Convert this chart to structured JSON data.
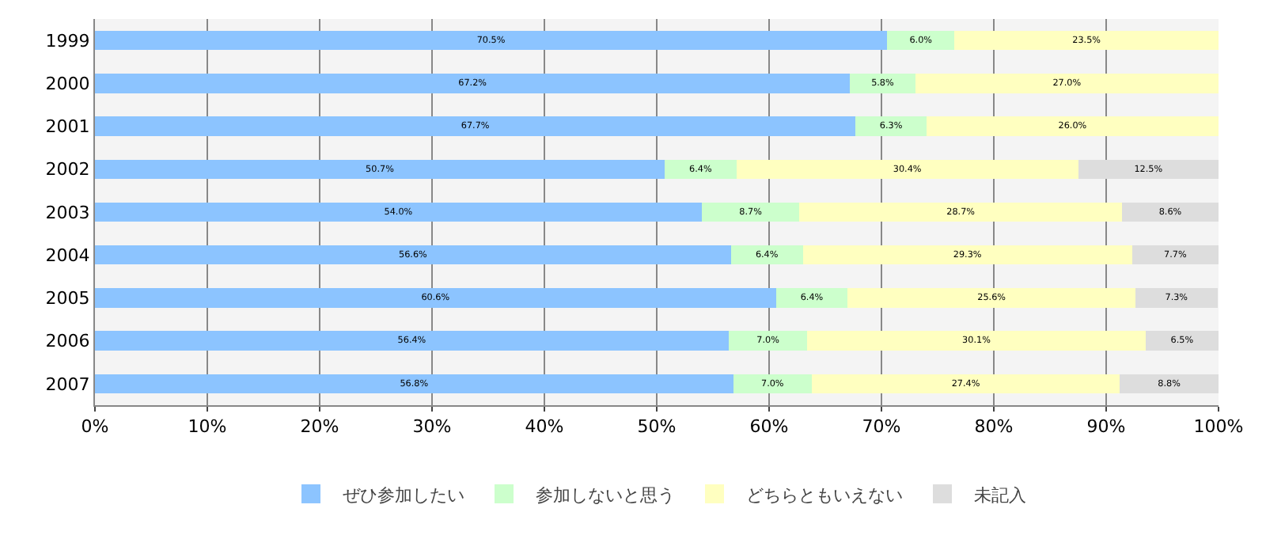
{
  "chart_data": {
    "type": "bar",
    "orientation": "horizontal",
    "stacked": true,
    "categories": [
      "1999",
      "2000",
      "2001",
      "2002",
      "2003",
      "2004",
      "2005",
      "2006",
      "2007"
    ],
    "series": [
      {
        "name": "ぜひ参加したい",
        "color": "#8cc4ff",
        "values": [
          70.5,
          67.2,
          67.7,
          50.7,
          54.0,
          56.6,
          60.6,
          56.4,
          56.8
        ],
        "value_labels": [
          "70.5%",
          "67.2%",
          "67.7%",
          "50.7%",
          "54.0%",
          "56.6%",
          "60.6%",
          "56.4%",
          "56.8%"
        ]
      },
      {
        "name": "参加しないと思う",
        "color": "#ccffcc",
        "values": [
          6.0,
          5.8,
          6.3,
          6.4,
          8.7,
          6.4,
          6.4,
          7.0,
          7.0
        ],
        "value_labels": [
          "6.0%",
          "5.8%",
          "6.3%",
          "6.4%",
          "8.7%",
          "6.4%",
          "6.4%",
          "7.0%",
          "7.0%"
        ]
      },
      {
        "name": "どちらともいえない",
        "color": "#ffffc0",
        "values": [
          23.5,
          27.0,
          26.0,
          30.4,
          28.7,
          29.3,
          25.6,
          30.1,
          27.4
        ],
        "value_labels": [
          "23.5%",
          "27.0%",
          "26.0%",
          "30.4%",
          "28.7%",
          "29.3%",
          "25.6%",
          "30.1%",
          "27.4%"
        ]
      },
      {
        "name": "未記入",
        "color": "#dddddd",
        "values": [
          null,
          null,
          null,
          12.5,
          8.6,
          7.7,
          7.3,
          6.5,
          8.8
        ],
        "value_labels": [
          null,
          null,
          null,
          "12.5%",
          "8.6%",
          "7.7%",
          "7.3%",
          "6.5%",
          "8.8%"
        ]
      }
    ],
    "xlim": [
      0,
      100
    ],
    "xticks": [
      {
        "value": 0,
        "label": "0%"
      },
      {
        "value": 10,
        "label": "10%"
      },
      {
        "value": 20,
        "label": "20%"
      },
      {
        "value": 30,
        "label": "30%"
      },
      {
        "value": 40,
        "label": "40%"
      },
      {
        "value": 50,
        "label": "50%"
      },
      {
        "value": 60,
        "label": "60%"
      },
      {
        "value": 70,
        "label": "70%"
      },
      {
        "value": 80,
        "label": "80%"
      },
      {
        "value": 90,
        "label": "90%"
      },
      {
        "value": 100,
        "label": "100%"
      }
    ],
    "grid": "x",
    "legend": "bottom"
  }
}
